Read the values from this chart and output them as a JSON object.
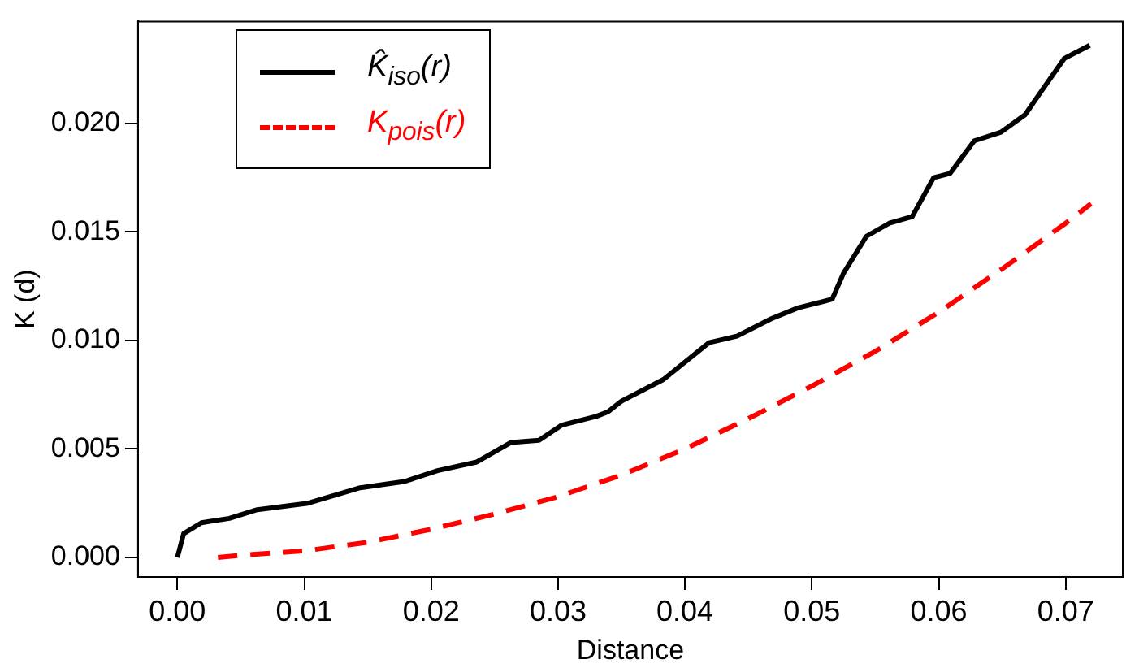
{
  "chart_data": {
    "type": "line",
    "xlabel": "Distance",
    "ylabel": "K (d)",
    "xlim": [
      -0.0031,
      0.0745
    ],
    "ylim": [
      -0.0009,
      0.0247
    ],
    "xticks": [
      {
        "value": 0,
        "label": "0.00"
      },
      {
        "value": 0.01,
        "label": "0.01"
      },
      {
        "value": 0.02,
        "label": "0.02"
      },
      {
        "value": 0.03,
        "label": "0.03"
      },
      {
        "value": 0.04,
        "label": "0.04"
      },
      {
        "value": 0.05,
        "label": "0.05"
      },
      {
        "value": 0.06,
        "label": "0.06"
      },
      {
        "value": 0.07,
        "label": "0.07"
      }
    ],
    "yticks": [
      {
        "value": 0,
        "label": "0.000"
      },
      {
        "value": 0.005,
        "label": "0.005"
      },
      {
        "value": 0.01,
        "label": "0.010"
      },
      {
        "value": 0.015,
        "label": "0.015"
      },
      {
        "value": 0.02,
        "label": "0.020"
      }
    ],
    "grid": false,
    "legend": "top left",
    "marker": "none",
    "series": [
      {
        "name": "K̂$_{iso}$(r)",
        "color": "#000000",
        "line_style": "solid",
        "x": [
          0,
          0.0005,
          0.0019,
          0.0041,
          0.0063,
          0.0103,
          0.0143,
          0.0179,
          0.0205,
          0.0236,
          0.0263,
          0.0285,
          0.0303,
          0.033,
          0.0339,
          0.035,
          0.0383,
          0.0419,
          0.0441,
          0.0468,
          0.0489,
          0.0516,
          0.0525,
          0.0543,
          0.0561,
          0.0579,
          0.0596,
          0.0609,
          0.0628,
          0.0649,
          0.0668,
          0.0681,
          0.0699,
          0.0719
        ],
        "values": [
          0,
          0.0011,
          0.0016,
          0.0018,
          0.0022,
          0.0025,
          0.0032,
          0.0035,
          0.004,
          0.0044,
          0.0053,
          0.0054,
          0.0061,
          0.0065,
          0.0067,
          0.0072,
          0.0082,
          0.0099,
          0.0102,
          0.011,
          0.0115,
          0.0119,
          0.0131,
          0.0148,
          0.0154,
          0.0157,
          0.0175,
          0.0177,
          0.0192,
          0.0196,
          0.0204,
          0.0215,
          0.023,
          0.0236
        ]
      },
      {
        "name": "K$_{pois}$(r)",
        "color": "#ff0000",
        "line_style": "dashed",
        "x": [
          0.0032,
          0.005,
          0.01,
          0.015,
          0.02,
          0.025,
          0.03,
          0.035,
          0.04,
          0.045,
          0.05,
          0.055,
          0.06,
          0.065,
          0.07,
          0.072
        ],
        "values": [
          0,
          0.0001,
          0.0003,
          0.0007,
          0.0013,
          0.002,
          0.0028,
          0.0038,
          0.005,
          0.0064,
          0.0079,
          0.0095,
          0.0113,
          0.0133,
          0.0154,
          0.0163
        ]
      }
    ]
  }
}
